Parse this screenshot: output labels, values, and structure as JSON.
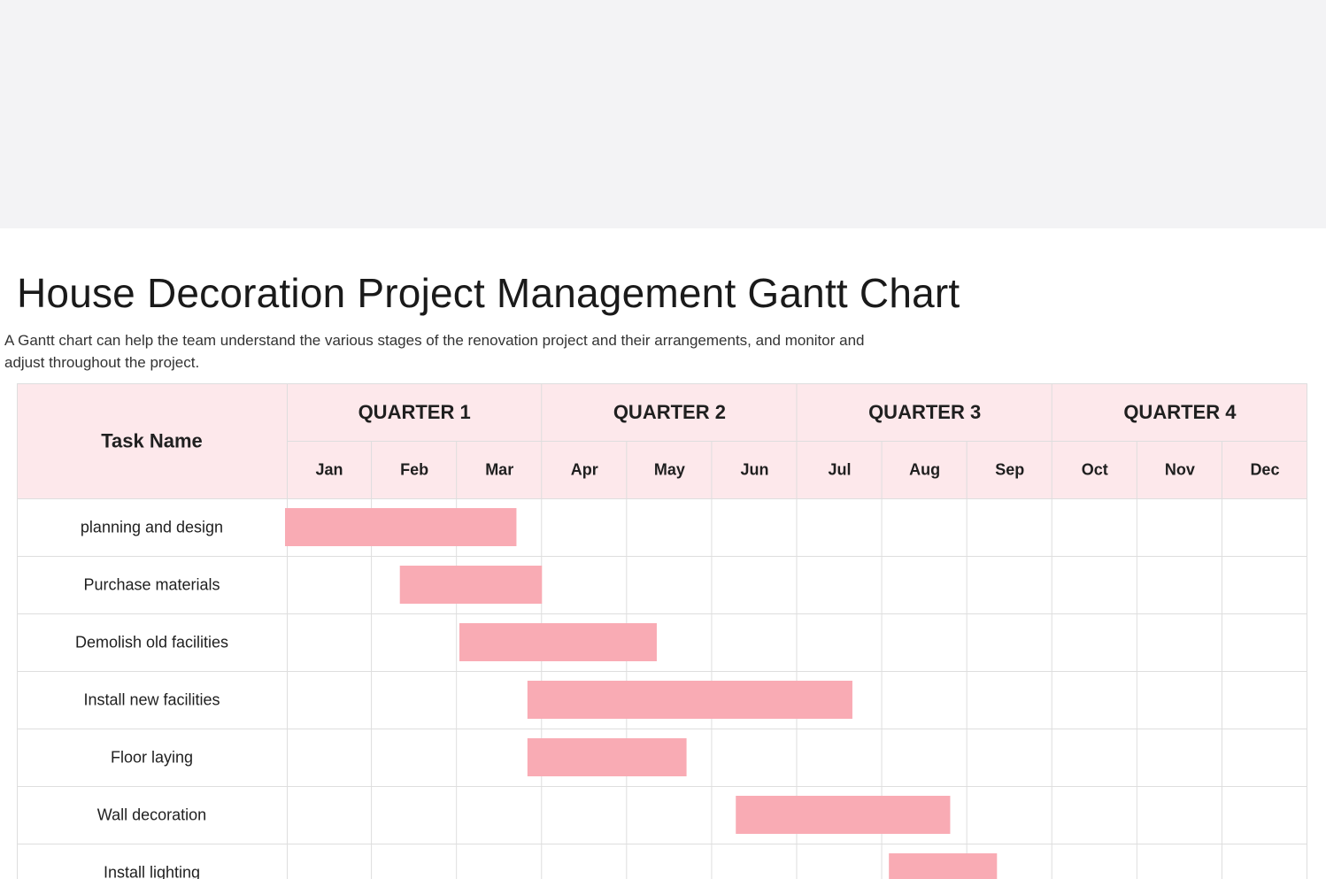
{
  "header": {
    "title": "House Decoration Project Management Gantt Chart",
    "description": "A Gantt chart can help the team understand the various stages of the renovation project and their arrangements, and monitor and adjust throughout the project."
  },
  "colors": {
    "top_band": "#f3f3f5",
    "header_fill": "#fde8eb",
    "bar_fill": "#f9abb4",
    "grid_line": "#dedede"
  },
  "chart_data": {
    "type": "gantt",
    "task_header": "Task Name",
    "quarters": [
      "QUARTER 1",
      "QUARTER 2",
      "QUARTER 3",
      "QUARTER 4"
    ],
    "months": [
      "Jan",
      "Feb",
      "Mar",
      "Apr",
      "May",
      "Jun",
      "Jul",
      "Aug",
      "Sep",
      "Oct",
      "Nov",
      "Dec"
    ],
    "month_units": "months from start of January (0 = Jan 1, 12 = Dec 31)",
    "tasks": [
      {
        "name": "planning and design",
        "start": 0.0,
        "end": 2.7
      },
      {
        "name": "Purchase materials",
        "start": 1.35,
        "end": 3.0
      },
      {
        "name": "Demolish old facilities",
        "start": 2.05,
        "end": 4.35
      },
      {
        "name": "Install new facilities",
        "start": 2.85,
        "end": 6.65
      },
      {
        "name": "Floor laying",
        "start": 2.85,
        "end": 4.7
      },
      {
        "name": "Wall decoration",
        "start": 5.3,
        "end": 7.8
      },
      {
        "name": "Install lighting",
        "start": 7.1,
        "end": 8.35
      }
    ]
  }
}
